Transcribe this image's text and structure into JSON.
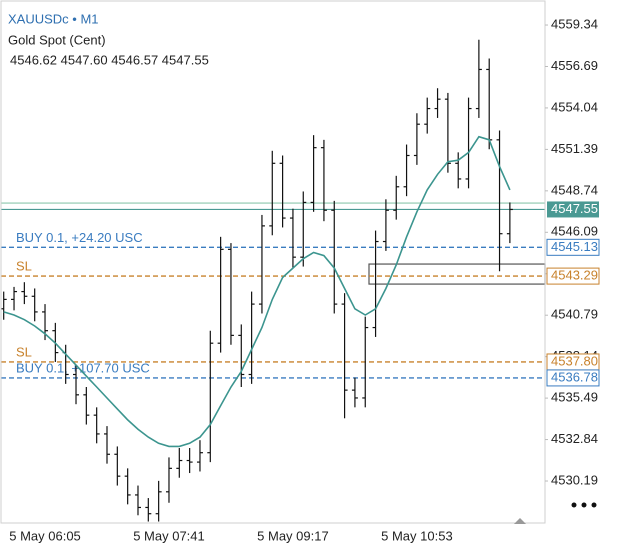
{
  "chart_data": {
    "type": "ohlc",
    "symbol": "XAUUSDc • M1",
    "subtitle": "Gold Spot (Cent)",
    "ohlc_text": "4546.62 4547.60 4546.57 4547.55",
    "categories": [
      null,
      null,
      null,
      null,
      "5 May 06:05",
      null,
      null,
      null,
      null,
      null,
      null,
      null,
      null,
      null,
      null,
      null,
      "5 May 07:41",
      null,
      null,
      null,
      null,
      null,
      null,
      null,
      null,
      null,
      null,
      null,
      "5 May 09:17",
      null,
      null,
      null,
      null,
      null,
      null,
      null,
      null,
      null,
      null,
      null,
      "5 May 10:53",
      null,
      null,
      null,
      null,
      null,
      null,
      null,
      null,
      null
    ],
    "open": [
      4541.2,
      4541.8,
      4542.3,
      4542.0,
      4541.0,
      4539.8,
      4538.4,
      4537.0,
      4535.7,
      4534.4,
      4533.2,
      4531.9,
      4530.5,
      4529.3,
      4528.5,
      4528.1,
      4529.5,
      4531.0,
      4531.5,
      4531.4,
      4532.0,
      4539.0,
      4545.0,
      4539.5,
      4537.0,
      4541.5,
      4546.5,
      4550.5,
      4547.0,
      4544.5,
      4548.0,
      4551.5,
      4547.5,
      4541.5,
      4536.0,
      4535.5,
      4540.0,
      4545.5,
      4547.5,
      4549.0,
      4551.0,
      4553.0,
      4554.0,
      4554.6,
      4550.5,
      4549.5,
      4554.0,
      4556.5,
      4552.0,
      4546.0
    ],
    "high": [
      4542.3,
      4542.6,
      4542.9,
      4542.5,
      4541.5,
      4540.3,
      4538.9,
      4537.6,
      4536.2,
      4534.9,
      4533.7,
      4532.4,
      4531.0,
      4529.9,
      4529.1,
      4530.2,
      4531.7,
      4532.3,
      4532.3,
      4532.8,
      4539.8,
      4545.8,
      4545.4,
      4540.2,
      4542.3,
      4547.2,
      4551.3,
      4551.0,
      4547.6,
      4548.7,
      4552.3,
      4552.0,
      4548.1,
      4542.2,
      4536.8,
      4540.7,
      4546.2,
      4548.2,
      4549.7,
      4551.7,
      4553.7,
      4554.7,
      4555.3,
      4555.0,
      4551.2,
      4554.7,
      4558.4,
      4557.2,
      4552.6,
      4548.0
    ],
    "low": [
      4540.5,
      4541.1,
      4541.5,
      4540.4,
      4539.2,
      4537.8,
      4536.4,
      4535.1,
      4533.8,
      4532.6,
      4531.3,
      4529.9,
      4528.7,
      4528.0,
      4527.6,
      4527.6,
      4528.8,
      4530.4,
      4530.7,
      4530.8,
      4531.4,
      4538.4,
      4538.9,
      4536.2,
      4536.4,
      4540.9,
      4545.9,
      4546.4,
      4543.8,
      4543.9,
      4547.4,
      4546.8,
      4540.9,
      4534.2,
      4534.9,
      4534.9,
      4539.4,
      4544.9,
      4546.9,
      4548.4,
      4550.4,
      4552.4,
      4553.4,
      4549.9,
      4548.9,
      4548.9,
      4553.4,
      4551.4,
      4543.6,
      4545.4
    ],
    "close": [
      4541.8,
      4542.3,
      4542.0,
      4541.0,
      4539.8,
      4538.4,
      4537.0,
      4535.7,
      4534.4,
      4533.2,
      4531.9,
      4530.5,
      4529.3,
      4528.5,
      4528.1,
      4529.5,
      4531.0,
      4531.5,
      4531.4,
      4532.0,
      4539.0,
      4545.0,
      4539.5,
      4537.0,
      4541.5,
      4546.5,
      4550.5,
      4547.0,
      4544.5,
      4548.0,
      4551.5,
      4547.5,
      4541.5,
      4536.0,
      4535.5,
      4540.0,
      4545.5,
      4547.5,
      4549.0,
      4551.0,
      4553.0,
      4554.0,
      4554.6,
      4550.5,
      4549.5,
      4554.0,
      4556.5,
      4552.0,
      4546.0,
      4547.55
    ],
    "bar_color": "#111111",
    "ma": {
      "color": "#3c958f",
      "values": [
        4541.0,
        4540.8,
        4540.5,
        4540.1,
        4539.6,
        4539.0,
        4538.3,
        4537.6,
        4536.9,
        4536.2,
        4535.5,
        4534.8,
        4534.1,
        4533.5,
        4533.0,
        4532.6,
        4532.4,
        4532.4,
        4532.6,
        4533.0,
        4533.8,
        4535.0,
        4536.2,
        4537.2,
        4538.6,
        4540.0,
        4541.8,
        4543.2,
        4543.8,
        4544.4,
        4544.8,
        4544.6,
        4543.8,
        4542.5,
        4541.2,
        4540.8,
        4541.2,
        4542.5,
        4544.0,
        4545.8,
        4547.4,
        4548.8,
        4549.8,
        4550.6,
        4550.7,
        4551.2,
        4552.2,
        4552.0,
        4550.3,
        4548.8
      ]
    },
    "ylim": [
      4527.57,
      4560.94
    ],
    "yticks": [
      4559.34,
      4556.69,
      4554.04,
      4551.39,
      4548.74,
      4546.09,
      4543.44,
      4540.79,
      4538.14,
      4535.49,
      4532.84,
      4530.19
    ],
    "ask": {
      "value": 4547.96,
      "color": "#8cc7ae"
    },
    "bid": {
      "value": 4547.55,
      "color": "#4a9993"
    },
    "box": {
      "top": 4544.06,
      "bottom": 4542.78,
      "color": "#555555"
    },
    "levels": [
      {
        "text": "BUY 0.1,    +24.20 USC",
        "value": 4545.13,
        "color": "#3a7cc0"
      },
      {
        "text": "SL",
        "value": 4543.29,
        "color": "#c8822c"
      },
      {
        "text": "SL",
        "value": 4537.8,
        "price_label": "4537.80",
        "color": "#c8822c"
      },
      {
        "text": "BUY 0.1,    +107.70 USC",
        "value": 4536.78,
        "color": "#3a7cc0"
      }
    ]
  }
}
